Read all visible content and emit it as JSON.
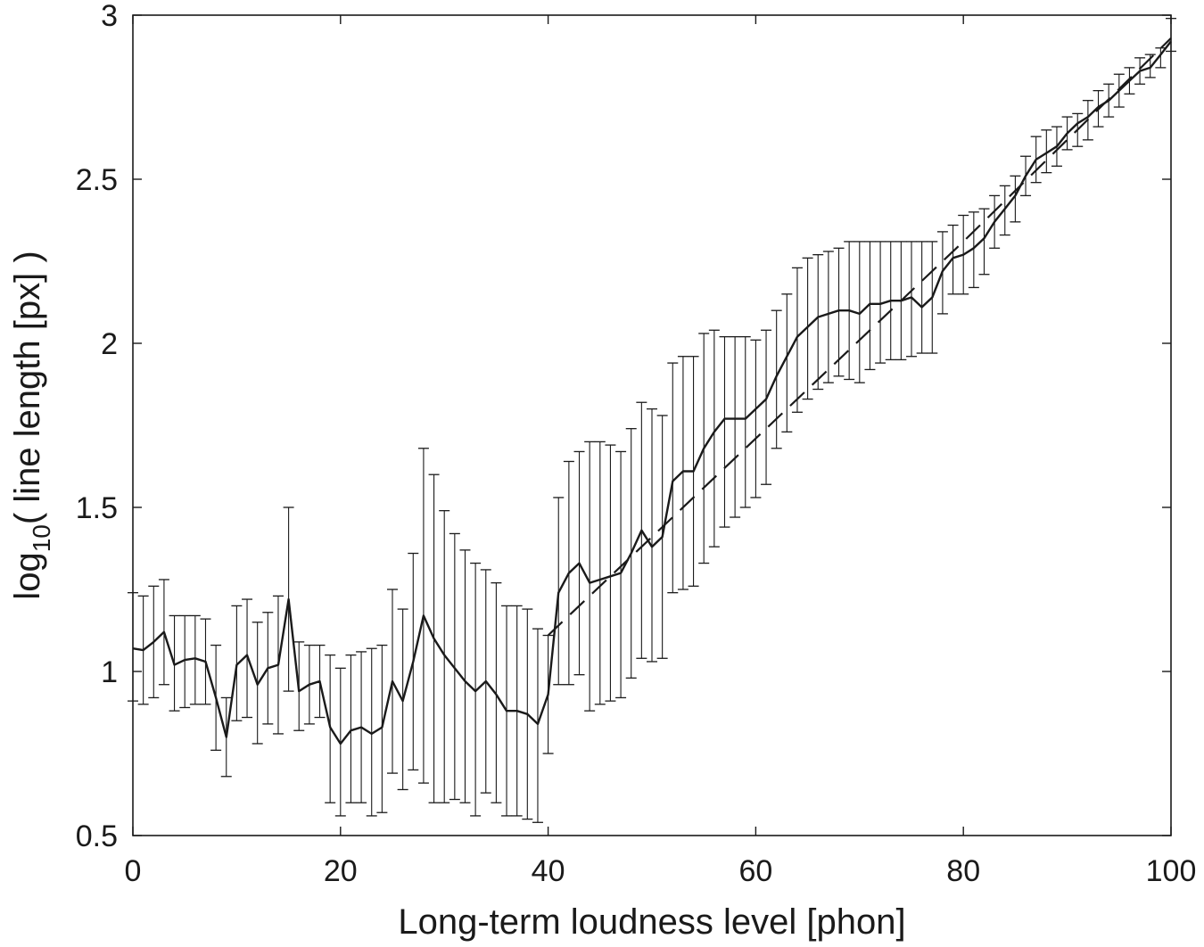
{
  "chart_data": {
    "type": "line",
    "title": "",
    "xlabel": "Long-term loudness level [phon]",
    "ylabel": {
      "prefix": "log",
      "subscript": "10",
      "suffix": "( line length [px] )"
    },
    "xlim": [
      0,
      100
    ],
    "ylim": [
      0.5,
      3
    ],
    "xticks": [
      0,
      20,
      40,
      60,
      80,
      100
    ],
    "yticks": [
      0.5,
      1,
      1.5,
      2,
      2.5,
      3
    ],
    "xtick_labels": [
      "0",
      "20",
      "40",
      "60",
      "80",
      "100"
    ],
    "ytick_labels": [
      "0.5",
      "1",
      "1.5",
      "2",
      "2.5",
      "3"
    ],
    "grid": false,
    "legend": "none",
    "series": [
      {
        "style": "solid with error bars",
        "x": [
          0,
          1,
          2,
          3,
          4,
          5,
          6,
          7,
          8,
          9,
          10,
          11,
          12,
          13,
          14,
          15,
          16,
          17,
          18,
          19,
          20,
          21,
          22,
          23,
          24,
          25,
          26,
          27,
          28,
          29,
          30,
          31,
          32,
          33,
          34,
          35,
          36,
          37,
          38,
          39,
          40,
          41,
          42,
          43,
          44,
          45,
          46,
          47,
          48,
          49,
          50,
          51,
          52,
          53,
          54,
          55,
          56,
          57,
          58,
          59,
          60,
          61,
          62,
          63,
          64,
          65,
          66,
          67,
          68,
          69,
          70,
          71,
          72,
          73,
          74,
          75,
          76,
          77,
          78,
          79,
          80,
          81,
          82,
          83,
          84,
          85,
          86,
          87,
          88,
          89,
          90,
          91,
          92,
          93,
          94,
          95,
          96,
          97,
          98,
          99,
          100
        ],
        "y": [
          1.07,
          1.065,
          1.09,
          1.12,
          1.02,
          1.035,
          1.04,
          1.03,
          0.92,
          0.8,
          1.02,
          1.05,
          0.96,
          1.01,
          1.02,
          1.22,
          0.94,
          0.96,
          0.97,
          0.83,
          0.78,
          0.82,
          0.83,
          0.81,
          0.83,
          0.97,
          0.91,
          1.03,
          1.17,
          1.1,
          1.05,
          1.01,
          0.97,
          0.94,
          0.97,
          0.93,
          0.88,
          0.88,
          0.87,
          0.84,
          0.93,
          1.24,
          1.3,
          1.33,
          1.27,
          1.28,
          1.29,
          1.3,
          1.36,
          1.43,
          1.38,
          1.41,
          1.58,
          1.61,
          1.61,
          1.68,
          1.73,
          1.77,
          1.77,
          1.77,
          1.8,
          1.83,
          1.9,
          1.96,
          2.02,
          2.05,
          2.08,
          2.09,
          2.1,
          2.1,
          2.09,
          2.12,
          2.12,
          2.13,
          2.13,
          2.14,
          2.11,
          2.14,
          2.22,
          2.26,
          2.27,
          2.29,
          2.32,
          2.37,
          2.41,
          2.45,
          2.51,
          2.56,
          2.58,
          2.6,
          2.64,
          2.67,
          2.69,
          2.72,
          2.74,
          2.77,
          2.8,
          2.83,
          2.84,
          2.88,
          2.92
        ],
        "upper": [
          1.24,
          1.23,
          1.26,
          1.28,
          1.17,
          1.17,
          1.17,
          1.16,
          1.08,
          0.92,
          1.2,
          1.22,
          1.15,
          1.18,
          1.23,
          1.5,
          1.09,
          1.08,
          1.08,
          1.05,
          1.01,
          1.05,
          1.06,
          1.07,
          1.08,
          1.25,
          1.19,
          1.36,
          1.68,
          1.6,
          1.49,
          1.42,
          1.37,
          1.33,
          1.31,
          1.27,
          1.2,
          1.2,
          1.19,
          1.13,
          1.11,
          1.53,
          1.64,
          1.67,
          1.7,
          1.7,
          1.69,
          1.67,
          1.74,
          1.82,
          1.8,
          1.78,
          1.94,
          1.96,
          1.96,
          2.03,
          2.04,
          2.02,
          2.02,
          2.02,
          2.01,
          2.04,
          2.1,
          2.15,
          2.23,
          2.26,
          2.27,
          2.28,
          2.29,
          2.31,
          2.31,
          2.31,
          2.31,
          2.31,
          2.31,
          2.31,
          2.31,
          2.31,
          2.34,
          2.36,
          2.39,
          2.4,
          2.41,
          2.45,
          2.48,
          2.51,
          2.57,
          2.63,
          2.65,
          2.66,
          2.69,
          2.7,
          2.74,
          2.77,
          2.79,
          2.82,
          2.84,
          2.87,
          2.88,
          2.9,
          2.99
        ],
        "lower": [
          0.91,
          0.9,
          0.92,
          0.96,
          0.88,
          0.89,
          0.9,
          0.9,
          0.76,
          0.68,
          0.85,
          0.86,
          0.78,
          0.84,
          0.81,
          0.94,
          0.82,
          0.84,
          0.86,
          0.6,
          0.56,
          0.6,
          0.6,
          0.56,
          0.57,
          0.69,
          0.64,
          0.7,
          0.66,
          0.6,
          0.6,
          0.61,
          0.6,
          0.56,
          0.63,
          0.6,
          0.56,
          0.56,
          0.55,
          0.54,
          0.75,
          0.96,
          0.96,
          0.99,
          0.88,
          0.9,
          0.91,
          0.92,
          0.98,
          1.04,
          1.03,
          1.04,
          1.24,
          1.25,
          1.26,
          1.33,
          1.38,
          1.44,
          1.47,
          1.5,
          1.53,
          1.57,
          1.68,
          1.73,
          1.79,
          1.83,
          1.86,
          1.88,
          1.9,
          1.89,
          1.88,
          1.92,
          1.94,
          1.95,
          1.95,
          1.96,
          1.97,
          1.97,
          2.09,
          2.15,
          2.15,
          2.17,
          2.21,
          2.29,
          2.33,
          2.37,
          2.45,
          2.49,
          2.52,
          2.54,
          2.59,
          2.6,
          2.62,
          2.66,
          2.69,
          2.72,
          2.76,
          2.79,
          2.81,
          2.84,
          2.89
        ]
      },
      {
        "style": "dashed",
        "x": [
          40,
          60,
          80,
          100
        ],
        "y": [
          1.11,
          1.71,
          2.31,
          2.93
        ]
      }
    ]
  }
}
